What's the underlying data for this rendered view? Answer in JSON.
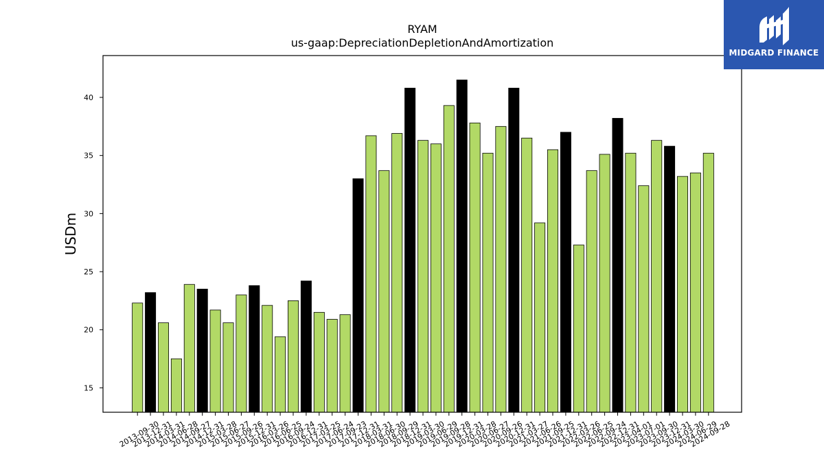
{
  "logo": {
    "text": "MIDGARD FINANCE"
  },
  "colors": {
    "regular": "#b2d966",
    "highlight": "#000000",
    "edge": "#000000",
    "logo_bg": "#2b57b0"
  },
  "chart_data": {
    "type": "bar",
    "title": "RYAM",
    "subtitle": "us-gaap:DepreciationDepletionAndAmortization",
    "xlabel": "",
    "ylabel": "USDm",
    "ylim": [
      12.9,
      43.6
    ],
    "yticks": [
      15,
      20,
      25,
      30,
      35,
      40
    ],
    "grid": false,
    "legend": "none",
    "categories": [
      "2013-09-30",
      "2013-12-31",
      "2014-03-31",
      "2014-06-28",
      "2014-09-27",
      "2014-12-31",
      "2015-03-28",
      "2015-06-27",
      "2015-09-26",
      "2015-12-31",
      "2016-03-26",
      "2016-06-25",
      "2016-09-24",
      "2016-12-31",
      "2017-03-25",
      "2017-06-24",
      "2017-09-23",
      "2017-12-31",
      "2018-03-31",
      "2018-06-30",
      "2018-09-29",
      "2018-12-31",
      "2019-03-30",
      "2019-06-29",
      "2019-09-28",
      "2019-12-31",
      "2020-03-28",
      "2020-06-27",
      "2020-09-26",
      "2020-12-31",
      "2021-03-27",
      "2021-06-26",
      "2021-09-25",
      "2021-12-31",
      "2022-03-26",
      "2022-06-25",
      "2022-09-24",
      "2022-12-31",
      "2023-04-01",
      "2023-07-01",
      "2023-09-30",
      "2023-12-31",
      "2024-03-30",
      "2024-06-29",
      "2024-09-28"
    ],
    "values": [
      22.3,
      23.2,
      20.6,
      17.5,
      23.9,
      23.5,
      21.7,
      20.6,
      23.0,
      23.8,
      22.1,
      19.4,
      22.5,
      24.2,
      21.5,
      20.9,
      21.3,
      33.0,
      36.7,
      33.7,
      36.9,
      40.8,
      36.3,
      36.0,
      39.3,
      41.5,
      37.8,
      35.2,
      37.5,
      40.8,
      36.5,
      29.2,
      35.5,
      37.0,
      27.3,
      33.7,
      35.1,
      38.2,
      35.2,
      32.4,
      36.3,
      35.8,
      33.2,
      33.5,
      35.2
    ],
    "highlight": [
      false,
      true,
      false,
      false,
      false,
      true,
      false,
      false,
      false,
      true,
      false,
      false,
      false,
      true,
      false,
      false,
      false,
      true,
      false,
      false,
      false,
      true,
      false,
      false,
      false,
      true,
      false,
      false,
      false,
      true,
      false,
      false,
      false,
      true,
      false,
      false,
      false,
      true,
      false,
      false,
      false,
      true,
      false,
      false,
      false
    ]
  }
}
